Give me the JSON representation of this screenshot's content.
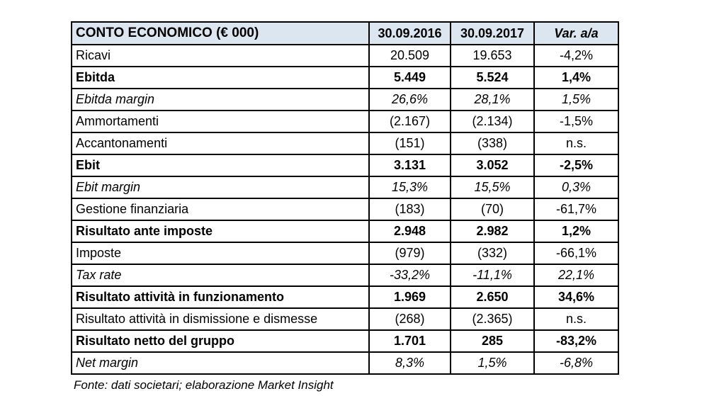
{
  "chart_data": {
    "type": "table",
    "title": "CONTO ECONOMICO (€ 000)",
    "columns": [
      "CONTO ECONOMICO (€ 000)",
      "30.09.2016",
      "30.09.2017",
      "Var. a/a"
    ],
    "rows": [
      {
        "label": "Ricavi",
        "values": [
          "20.509",
          "19.653",
          "-4,2%"
        ],
        "emphasis": "normal"
      },
      {
        "label": "Ebitda",
        "values": [
          "5.449",
          "5.524",
          "1,4%"
        ],
        "emphasis": "bold"
      },
      {
        "label": "Ebitda margin",
        "values": [
          "26,6%",
          "28,1%",
          "1,5%"
        ],
        "emphasis": "italic"
      },
      {
        "label": "Ammortamenti",
        "values": [
          "(2.167)",
          "(2.134)",
          "-1,5%"
        ],
        "emphasis": "normal"
      },
      {
        "label": "Accantonamenti",
        "values": [
          "(151)",
          "(338)",
          "n.s."
        ],
        "emphasis": "normal"
      },
      {
        "label": "Ebit",
        "values": [
          "3.131",
          "3.052",
          "-2,5%"
        ],
        "emphasis": "bold"
      },
      {
        "label": "Ebit margin",
        "values": [
          "15,3%",
          "15,5%",
          "0,3%"
        ],
        "emphasis": "italic"
      },
      {
        "label": "Gestione finanziaria",
        "values": [
          "(183)",
          "(70)",
          "-61,7%"
        ],
        "emphasis": "normal"
      },
      {
        "label": "Risultato ante imposte",
        "values": [
          "2.948",
          "2.982",
          "1,2%"
        ],
        "emphasis": "bold"
      },
      {
        "label": "Imposte",
        "values": [
          "(979)",
          "(332)",
          "-66,1%"
        ],
        "emphasis": "normal"
      },
      {
        "label": "Tax rate",
        "values": [
          "-33,2%",
          "-11,1%",
          "22,1%"
        ],
        "emphasis": "italic"
      },
      {
        "label": "Risultato attività in funzionamento",
        "values": [
          "1.969",
          "2.650",
          "34,6%"
        ],
        "emphasis": "bold"
      },
      {
        "label": "Risultato attività in dismissione e dismesse",
        "values": [
          "(268)",
          "(2.365)",
          "n.s."
        ],
        "emphasis": "normal"
      },
      {
        "label": "Risultato netto del gruppo",
        "values": [
          "1.701",
          "285",
          "-83,2%"
        ],
        "emphasis": "bold"
      },
      {
        "label": "Net margin",
        "values": [
          "8,3%",
          "1,5%",
          "-6,8%"
        ],
        "emphasis": "italic"
      }
    ],
    "source_note": "Fonte: dati societari; elaborazione Market Insight",
    "layout": {
      "header_align": "center",
      "label_align": "left",
      "value_align": "center"
    }
  },
  "colors": {
    "header_bg": "#DCE6F1",
    "border_color": "#000000",
    "text_color": "#000000"
  }
}
